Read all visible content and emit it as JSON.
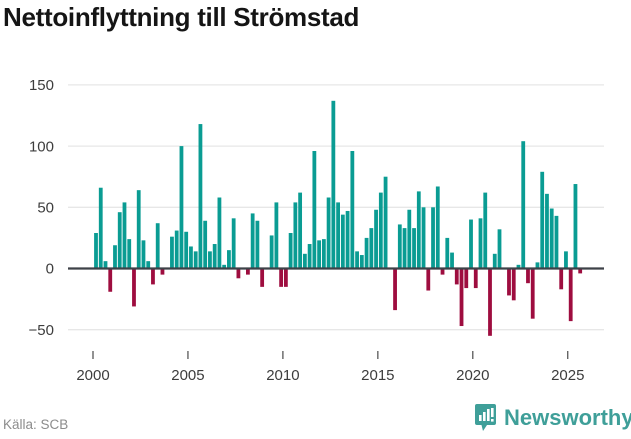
{
  "title": "Nettoinflyttning till Strömstad",
  "footer": {
    "source_label": "Källa: SCB"
  },
  "logo": {
    "text": "Newsworthy",
    "color": "#3f9f99"
  },
  "colors": {
    "positive": "#0a9c93",
    "negative": "#9e0d3f",
    "zero_axis": "#3d4248",
    "gridline": "#e7e7e7",
    "axis_text": "#3d3d3d",
    "tick": "#4a4a4a"
  },
  "chart_data": {
    "type": "bar",
    "title": "Nettoinflyttning till Strömstad",
    "frequency": "quarterly",
    "x_start": "2000Q1",
    "x_end": "2025Q3",
    "xlabel": "",
    "ylabel": "",
    "ylim": [
      -62,
      158
    ],
    "grid": true,
    "legend": false,
    "y_ticks": [
      150,
      100,
      50,
      0,
      -50
    ],
    "x_ticks": [
      2000,
      2005,
      2010,
      2015,
      2020,
      2025
    ],
    "values": [
      29,
      66,
      6,
      -19,
      19,
      46,
      54,
      24,
      -31,
      64,
      23,
      6,
      -13,
      37,
      -5,
      0,
      26,
      31,
      100,
      30,
      18,
      14,
      118,
      39,
      14,
      20,
      58,
      3,
      15,
      41,
      -8,
      0,
      -5,
      45,
      39,
      -15,
      0,
      27,
      54,
      -15,
      -15,
      29,
      54,
      62,
      12,
      20,
      96,
      23,
      24,
      58,
      137,
      54,
      44,
      47,
      96,
      14,
      11,
      25,
      33,
      48,
      62,
      75,
      0,
      -34,
      36,
      33,
      48,
      33,
      63,
      50,
      -18,
      50,
      67,
      -5,
      25,
      13,
      -13,
      -47,
      -16,
      40,
      -16,
      41,
      62,
      -55,
      12,
      32,
      0,
      -22,
      -26,
      3,
      104,
      -12,
      -41,
      5,
      79,
      61,
      49,
      43,
      -17,
      14,
      -43,
      69,
      -4
    ]
  }
}
